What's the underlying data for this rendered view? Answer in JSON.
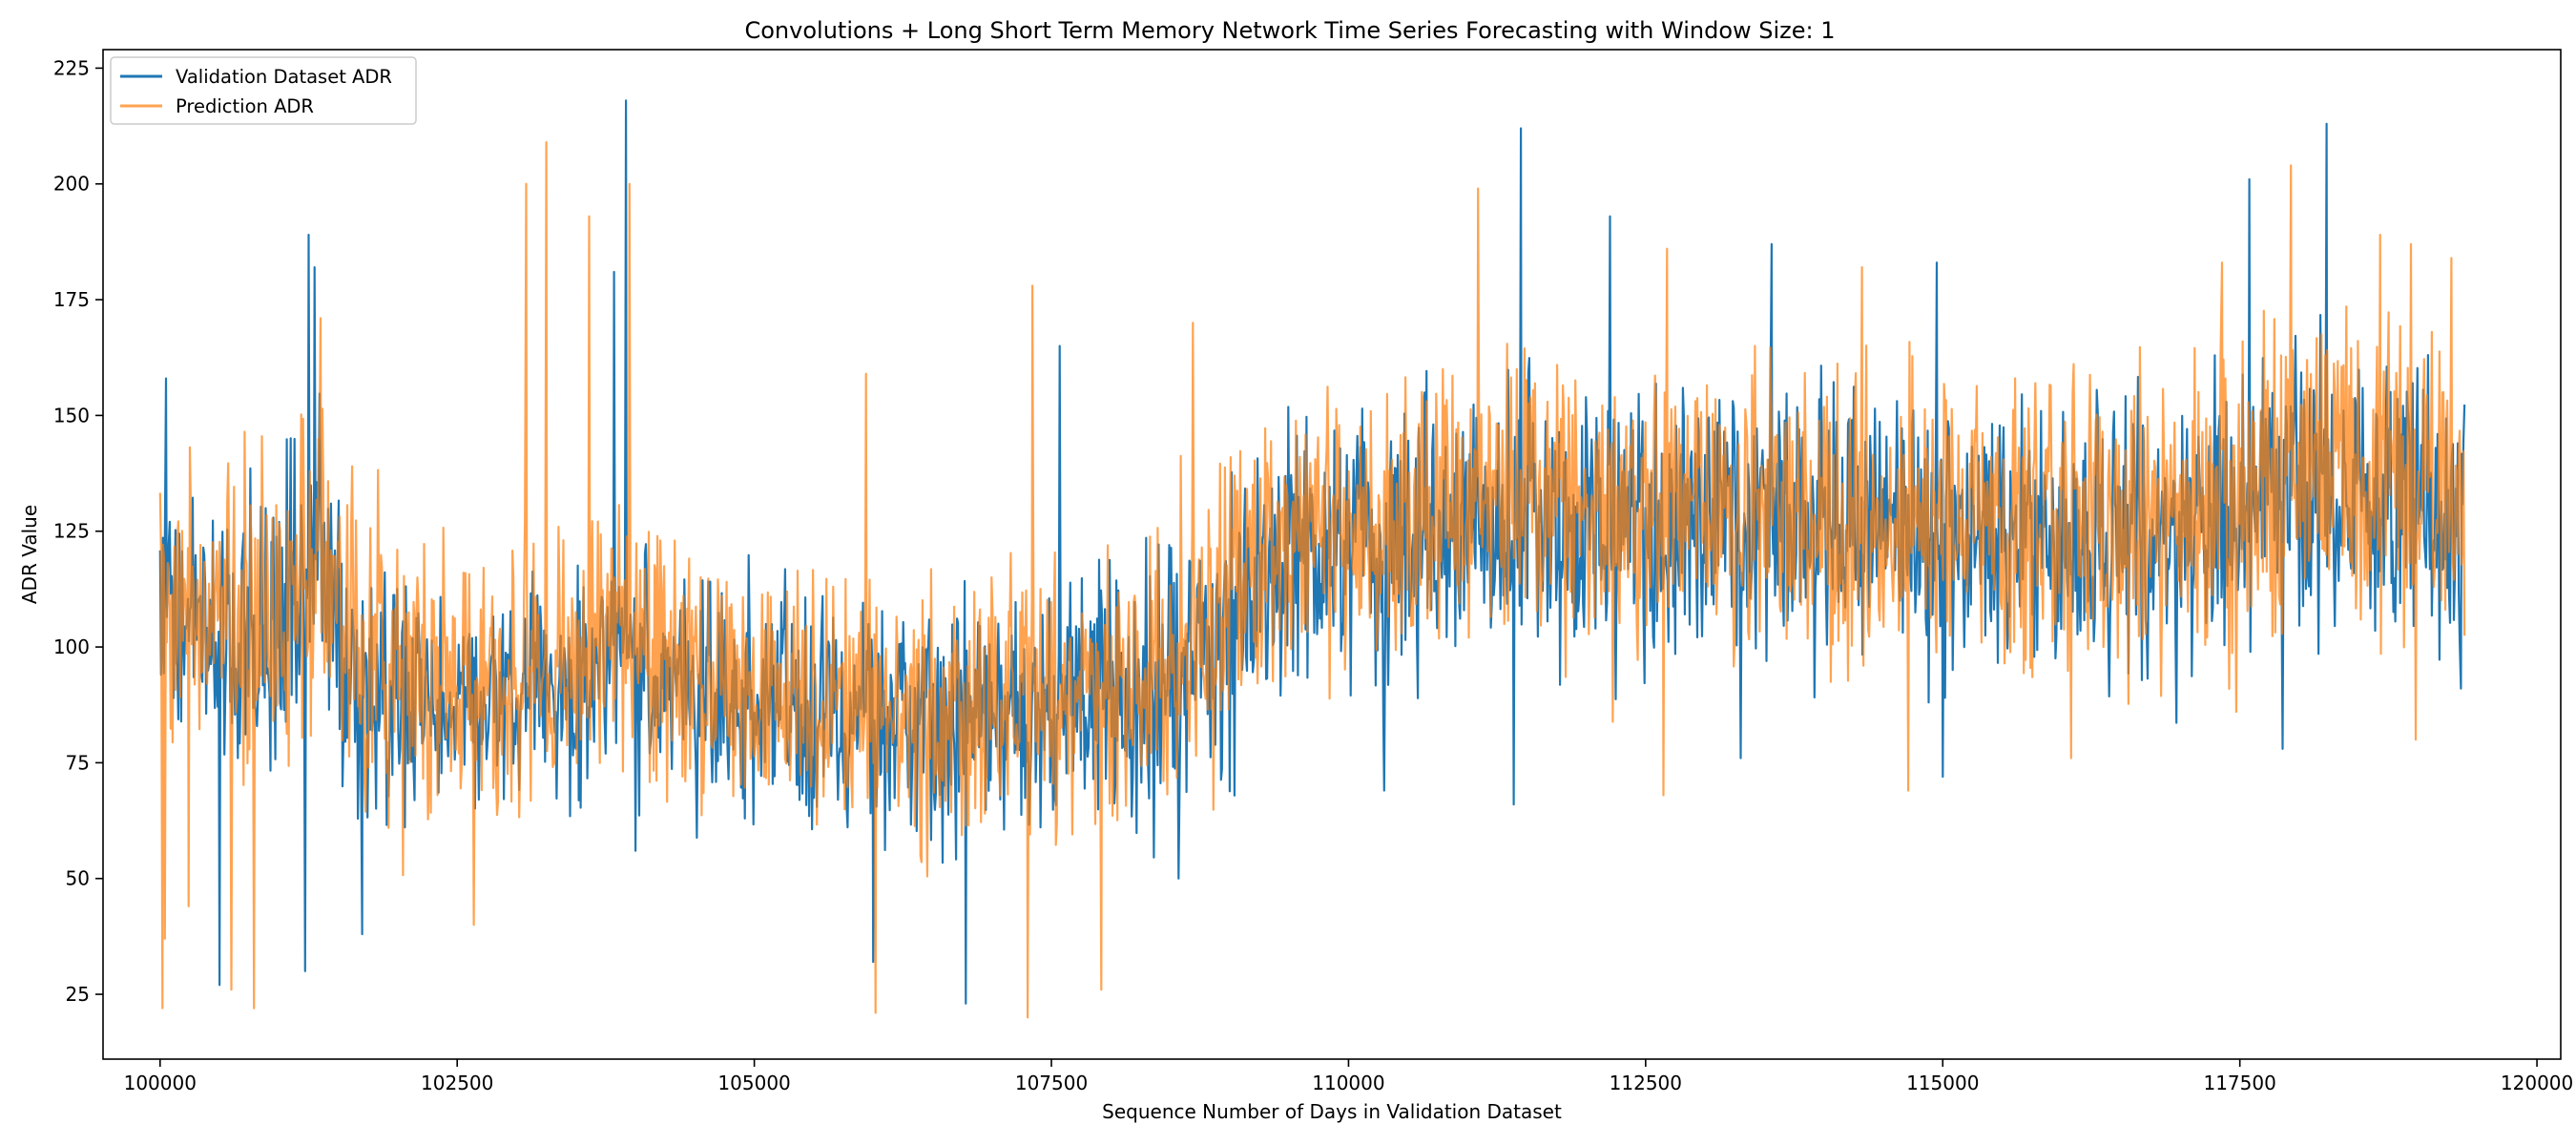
{
  "chart_data": {
    "type": "line",
    "title": "Convolutions + Long Short Term Memory Network Time Series Forecasting with Window Size: 1",
    "xlabel": "Sequence Number of Days in Validation Dataset",
    "ylabel": "ADR Value",
    "xlim": [
      99520,
      120200
    ],
    "ylim": [
      11,
      229
    ],
    "x_ticks": [
      100000,
      102500,
      105000,
      107500,
      110000,
      112500,
      115000,
      117500,
      120000
    ],
    "y_ticks": [
      25,
      50,
      75,
      100,
      125,
      150,
      175,
      200,
      225
    ],
    "x_range": [
      100000,
      119390
    ],
    "grid": false,
    "legend_position": "upper-left",
    "series": [
      {
        "name": "Validation Dataset ADR",
        "color": "#1f77b4",
        "opacity": 1.0,
        "trend": [
          [
            100000,
            112
          ],
          [
            100500,
            102
          ],
          [
            101000,
            103
          ],
          [
            101300,
            118
          ],
          [
            101600,
            92
          ],
          [
            102500,
            88
          ],
          [
            103500,
            92
          ],
          [
            103900,
            100
          ],
          [
            104500,
            90
          ],
          [
            105500,
            85
          ],
          [
            106500,
            83
          ],
          [
            107500,
            86
          ],
          [
            108500,
            92
          ],
          [
            109000,
            103
          ],
          [
            109500,
            120
          ],
          [
            110500,
            122
          ],
          [
            111500,
            126
          ],
          [
            112500,
            124
          ],
          [
            113500,
            126
          ],
          [
            114500,
            124
          ],
          [
            115500,
            124
          ],
          [
            116500,
            122
          ],
          [
            117500,
            128
          ],
          [
            118300,
            136
          ],
          [
            119000,
            128
          ],
          [
            119390,
            124
          ]
        ],
        "spread": [
          [
            100000,
            26
          ],
          [
            101300,
            30
          ],
          [
            102500,
            22
          ],
          [
            105000,
            22
          ],
          [
            107500,
            24
          ],
          [
            109500,
            28
          ],
          [
            112500,
            28
          ],
          [
            115500,
            26
          ],
          [
            118000,
            30
          ],
          [
            119390,
            28
          ]
        ],
        "spikes": [
          [
            100050,
            158
          ],
          [
            101250,
            189
          ],
          [
            101300,
            182
          ],
          [
            101220,
            30
          ],
          [
            100500,
            27
          ],
          [
            101700,
            38
          ],
          [
            103820,
            181
          ],
          [
            103920,
            218
          ],
          [
            104000,
            56
          ],
          [
            106780,
            23
          ],
          [
            106000,
            32
          ],
          [
            107570,
            165
          ],
          [
            108570,
            50
          ],
          [
            111450,
            212
          ],
          [
            111390,
            66
          ],
          [
            112200,
            193
          ],
          [
            113560,
            187
          ],
          [
            114950,
            183
          ],
          [
            115000,
            72
          ],
          [
            117580,
            201
          ],
          [
            118230,
            213
          ],
          [
            117860,
            78
          ],
          [
            119360,
            91
          ],
          [
            113300,
            76
          ],
          [
            110300,
            69
          ]
        ]
      },
      {
        "name": "Prediction ADR",
        "color": "#ff7f0e",
        "opacity": 0.72,
        "trend": [
          [
            100000,
            110
          ],
          [
            100500,
            106
          ],
          [
            101000,
            110
          ],
          [
            101300,
            118
          ],
          [
            101600,
            100
          ],
          [
            102500,
            92
          ],
          [
            103500,
            96
          ],
          [
            103900,
            104
          ],
          [
            104500,
            92
          ],
          [
            105500,
            88
          ],
          [
            106500,
            86
          ],
          [
            107500,
            90
          ],
          [
            108500,
            96
          ],
          [
            109000,
            108
          ],
          [
            109500,
            124
          ],
          [
            110500,
            126
          ],
          [
            111500,
            130
          ],
          [
            112500,
            128
          ],
          [
            113500,
            130
          ],
          [
            114500,
            128
          ],
          [
            115500,
            128
          ],
          [
            116500,
            126
          ],
          [
            117500,
            134
          ],
          [
            118300,
            140
          ],
          [
            119000,
            134
          ],
          [
            119390,
            130
          ]
        ],
        "spread": [
          [
            100000,
            30
          ],
          [
            101300,
            34
          ],
          [
            102500,
            26
          ],
          [
            105000,
            24
          ],
          [
            107500,
            26
          ],
          [
            109500,
            30
          ],
          [
            112500,
            30
          ],
          [
            115500,
            28
          ],
          [
            118000,
            32
          ],
          [
            119390,
            30
          ]
        ],
        "spikes": [
          [
            100020,
            22
          ],
          [
            100040,
            37
          ],
          [
            100600,
            26
          ],
          [
            100790,
            22
          ],
          [
            101350,
            171
          ],
          [
            103250,
            209
          ],
          [
            103080,
            200
          ],
          [
            103610,
            193
          ],
          [
            103950,
            200
          ],
          [
            106020,
            21
          ],
          [
            107300,
            20
          ],
          [
            107340,
            178
          ],
          [
            107920,
            26
          ],
          [
            108690,
            170
          ],
          [
            105940,
            159
          ],
          [
            111090,
            199
          ],
          [
            114320,
            182
          ],
          [
            112680,
            186
          ],
          [
            117930,
            204
          ],
          [
            118680,
            189
          ],
          [
            118940,
            187
          ],
          [
            117350,
            183
          ],
          [
            119280,
            184
          ],
          [
            116080,
            76
          ],
          [
            117470,
            86
          ],
          [
            114710,
            69
          ],
          [
            112650,
            68
          ],
          [
            118980,
            80
          ],
          [
            102640,
            40
          ],
          [
            100240,
            44
          ]
        ]
      }
    ]
  }
}
